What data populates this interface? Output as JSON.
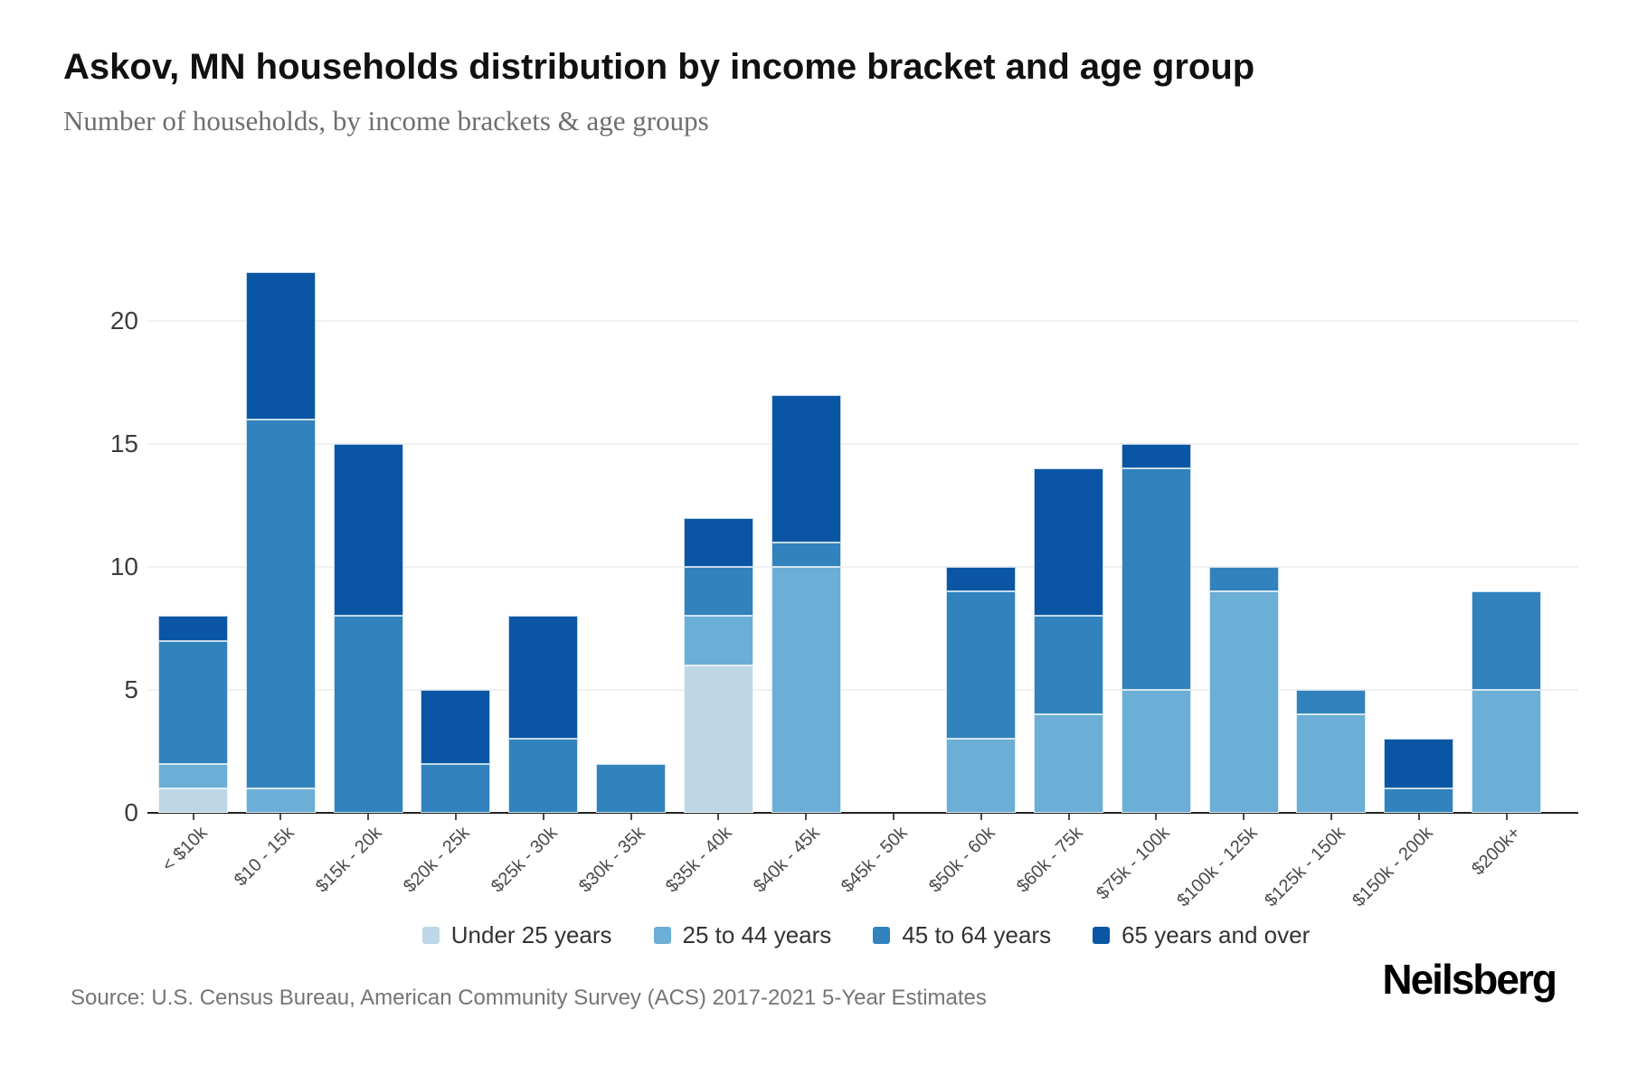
{
  "header": {
    "title": "Askov, MN households distribution by income bracket and age group",
    "subtitle": "Number of households, by income brackets & age groups"
  },
  "chart_data": {
    "type": "bar",
    "stacked": true,
    "title": "Askov, MN households distribution by income bracket and age group",
    "subtitle": "Number of households, by income brackets & age groups",
    "xlabel": "",
    "ylabel": "",
    "ylim": [
      0,
      22
    ],
    "yticks": [
      0,
      5,
      10,
      15,
      20
    ],
    "grid": true,
    "legend_position": "bottom-center",
    "categories": [
      "< $10k",
      "$10 - 15k",
      "$15k - 20k",
      "$20k - 25k",
      "$25k - 30k",
      "$30k - 35k",
      "$35k - 40k",
      "$40k - 45k",
      "$45k - 50k",
      "$50k - 60k",
      "$60k - 75k",
      "$75k - 100k",
      "$100k - 125k",
      "$125k - 150k",
      "$150k - 200k",
      "$200k+"
    ],
    "series": [
      {
        "name": "Under 25 years",
        "color": "#bdd7e7",
        "values": [
          1,
          0,
          0,
          0,
          0,
          0,
          6,
          0,
          0,
          0,
          0,
          0,
          0,
          0,
          0,
          0
        ]
      },
      {
        "name": "25 to 44 years",
        "color": "#6baed6",
        "values": [
          1,
          1,
          0,
          0,
          0,
          0,
          2,
          10,
          0,
          3,
          4,
          5,
          9,
          4,
          0,
          5
        ]
      },
      {
        "name": "45 to 64 years",
        "color": "#3182bd",
        "values": [
          5,
          15,
          8,
          2,
          3,
          2,
          2,
          1,
          0,
          6,
          4,
          9,
          1,
          1,
          1,
          4
        ]
      },
      {
        "name": "65 years and over",
        "color": "#0b56a4",
        "values": [
          1,
          6,
          7,
          3,
          5,
          0,
          2,
          6,
          0,
          1,
          6,
          1,
          0,
          0,
          2,
          0
        ]
      }
    ]
  },
  "footer": {
    "source": "Source: U.S. Census Bureau, American Community Survey (ACS) 2017-2021 5-Year Estimates",
    "brand": "Neilsberg"
  }
}
